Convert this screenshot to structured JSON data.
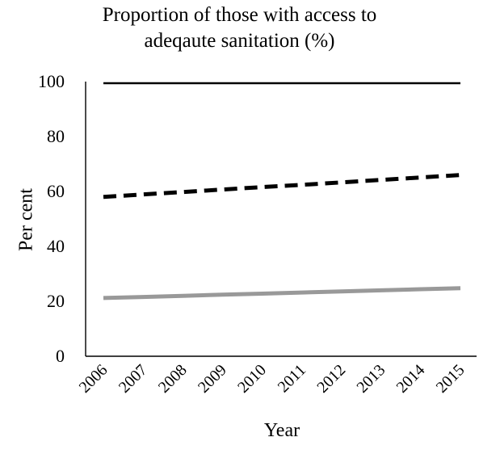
{
  "chart_data": {
    "type": "line",
    "title_lines": [
      "Proportion of those with access to",
      "adeqaute sanitation (%)"
    ],
    "xlabel": "Year",
    "ylabel": "Per cent",
    "x": [
      "2006",
      "2007",
      "2008",
      "2009",
      "2010",
      "2011",
      "2012",
      "2013",
      "2014",
      "2015"
    ],
    "ylim": [
      0,
      100
    ],
    "yticks": [
      "0",
      "20",
      "40",
      "60",
      "80",
      "100"
    ],
    "grid": false,
    "legend": "none",
    "series": [
      {
        "style": "solid",
        "color": "#000000",
        "values": [
          99.4,
          99.4,
          99.4,
          99.4,
          99.4,
          99.4,
          99.4,
          99.4,
          99.4,
          99.4
        ]
      },
      {
        "style": "dashed",
        "color": "#000000",
        "values": [
          58,
          58.9,
          59.8,
          60.7,
          61.6,
          62.4,
          63.3,
          64.2,
          65.1,
          66
        ]
      },
      {
        "style": "solid",
        "color": "#999999",
        "values": [
          21.2,
          21.6,
          22,
          22.4,
          22.8,
          23.2,
          23.6,
          24,
          24.4,
          24.8
        ]
      }
    ]
  }
}
